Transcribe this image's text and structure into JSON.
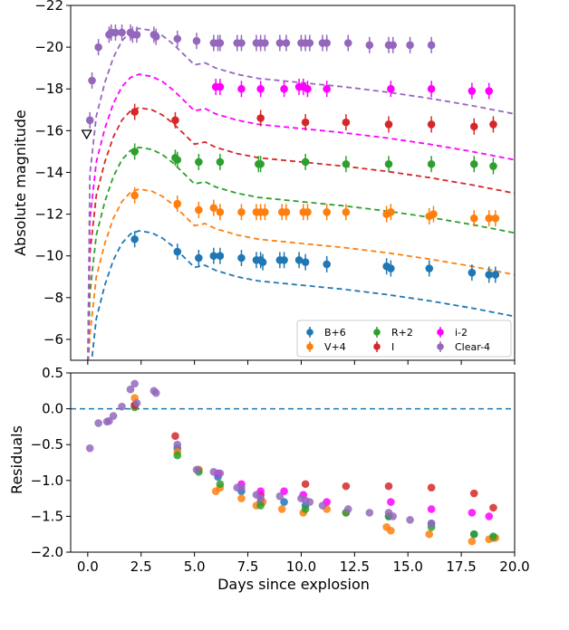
{
  "chart_data": {
    "type": "scatter",
    "xlabel": "Days since explosion",
    "xlim": [
      -0.8,
      20.0
    ],
    "x_ticks": [
      "0.0",
      "2.5",
      "5.0",
      "7.5",
      "10.0",
      "12.5",
      "15.0",
      "17.5",
      "20.0"
    ],
    "x_tick_values": [
      0,
      2.5,
      5,
      7.5,
      10,
      12.5,
      15,
      17.5,
      20
    ],
    "top": {
      "ylabel": "Absolute magnitude",
      "ylim": [
        -22,
        -5
      ],
      "inverted": true,
      "y_ticks": [
        "−22",
        "−20",
        "−18",
        "−16",
        "−14",
        "−12",
        "−10",
        "−8",
        "−6"
      ],
      "y_tick_values": [
        -22,
        -20,
        -18,
        -16,
        -14,
        -12,
        -10,
        -8,
        -6
      ],
      "upper_limit": {
        "x": -0.05,
        "y": -15.8,
        "marker": "down-triangle"
      },
      "model_shape": {
        "days": [
          0.1,
          0.4,
          0.8,
          1.2,
          1.6,
          2.0,
          2.4,
          3.0,
          3.5,
          4.0,
          4.5,
          5.0,
          5.5,
          6.0,
          7.0,
          8.0,
          10.0,
          12.0,
          14.0,
          16.0,
          18.0,
          20.0
        ],
        "offset": [
          7.0,
          4.2,
          2.6,
          1.4,
          0.6,
          0.15,
          0.0,
          0.1,
          0.35,
          0.75,
          1.25,
          1.75,
          1.65,
          1.9,
          2.2,
          2.4,
          2.6,
          2.8,
          3.05,
          3.35,
          3.7,
          4.1
        ]
      },
      "series": [
        {
          "name": "B+6",
          "color": "#1f77b4",
          "model_peak": -11.2,
          "points": [
            [
              2.2,
              -10.8
            ],
            [
              4.2,
              -10.2
            ],
            [
              5.2,
              -9.9
            ],
            [
              5.9,
              -10.0
            ],
            [
              6.2,
              -10.0
            ],
            [
              7.2,
              -9.9
            ],
            [
              7.9,
              -9.8
            ],
            [
              8.1,
              -9.8
            ],
            [
              8.2,
              -9.7
            ],
            [
              9.0,
              -9.8
            ],
            [
              9.2,
              -9.8
            ],
            [
              9.9,
              -9.8
            ],
            [
              10.2,
              -9.7
            ],
            [
              11.2,
              -9.6
            ],
            [
              14.0,
              -9.5
            ],
            [
              14.2,
              -9.4
            ],
            [
              16.0,
              -9.4
            ],
            [
              18.0,
              -9.2
            ],
            [
              18.8,
              -9.1
            ],
            [
              19.1,
              -9.1
            ]
          ]
        },
        {
          "name": "V+4",
          "color": "#ff7f0e",
          "model_peak": -13.2,
          "points": [
            [
              2.2,
              -12.9
            ],
            [
              4.2,
              -12.5
            ],
            [
              5.2,
              -12.2
            ],
            [
              5.9,
              -12.3
            ],
            [
              6.2,
              -12.1
            ],
            [
              7.2,
              -12.1
            ],
            [
              7.9,
              -12.1
            ],
            [
              8.1,
              -12.1
            ],
            [
              8.3,
              -12.1
            ],
            [
              9.1,
              -12.1
            ],
            [
              9.3,
              -12.1
            ],
            [
              10.1,
              -12.1
            ],
            [
              10.3,
              -12.1
            ],
            [
              11.2,
              -12.1
            ],
            [
              12.1,
              -12.1
            ],
            [
              14.0,
              -12.0
            ],
            [
              14.2,
              -12.1
            ],
            [
              16.0,
              -11.9
            ],
            [
              16.2,
              -12.0
            ],
            [
              18.1,
              -11.8
            ],
            [
              18.8,
              -11.8
            ],
            [
              19.1,
              -11.8
            ]
          ]
        },
        {
          "name": "R+2",
          "color": "#2ca02c",
          "model_peak": -15.2,
          "points": [
            [
              2.2,
              -15.0
            ],
            [
              4.1,
              -14.7
            ],
            [
              4.2,
              -14.6
            ],
            [
              5.2,
              -14.5
            ],
            [
              6.2,
              -14.5
            ],
            [
              8.0,
              -14.4
            ],
            [
              8.1,
              -14.4
            ],
            [
              10.2,
              -14.5
            ],
            [
              12.1,
              -14.4
            ],
            [
              14.1,
              -14.4
            ],
            [
              16.1,
              -14.4
            ],
            [
              18.1,
              -14.4
            ],
            [
              19.0,
              -14.3
            ]
          ]
        },
        {
          "name": "I",
          "color": "#d62728",
          "model_peak": -17.1,
          "points": [
            [
              2.2,
              -16.9
            ],
            [
              4.1,
              -16.5
            ],
            [
              8.1,
              -16.6
            ],
            [
              10.2,
              -16.4
            ],
            [
              12.1,
              -16.4
            ],
            [
              14.1,
              -16.3
            ],
            [
              16.1,
              -16.3
            ],
            [
              18.1,
              -16.2
            ],
            [
              19.0,
              -16.3
            ]
          ]
        },
        {
          "name": "i-2",
          "color": "#ff00ff",
          "model_peak": -18.7,
          "points": [
            [
              6.0,
              -18.1
            ],
            [
              6.2,
              -18.1
            ],
            [
              7.2,
              -18.0
            ],
            [
              8.1,
              -18.0
            ],
            [
              9.2,
              -18.0
            ],
            [
              9.9,
              -18.1
            ],
            [
              10.1,
              -18.1
            ],
            [
              10.3,
              -18.0
            ],
            [
              11.2,
              -18.0
            ],
            [
              14.2,
              -18.0
            ],
            [
              16.1,
              -18.0
            ],
            [
              18.0,
              -17.9
            ],
            [
              18.8,
              -17.9
            ]
          ]
        },
        {
          "name": "Clear-4",
          "color": "#9467bd",
          "model_peak": -20.9,
          "points": [
            [
              0.1,
              -16.5
            ],
            [
              0.2,
              -18.4
            ],
            [
              0.5,
              -20.0
            ],
            [
              1.0,
              -20.6
            ],
            [
              1.1,
              -20.7
            ],
            [
              1.3,
              -20.7
            ],
            [
              1.6,
              -20.7
            ],
            [
              2.0,
              -20.7
            ],
            [
              2.1,
              -20.6
            ],
            [
              2.3,
              -20.6
            ],
            [
              3.1,
              -20.6
            ],
            [
              3.2,
              -20.5
            ],
            [
              4.2,
              -20.4
            ],
            [
              5.1,
              -20.3
            ],
            [
              5.9,
              -20.2
            ],
            [
              6.1,
              -20.2
            ],
            [
              6.2,
              -20.2
            ],
            [
              7.0,
              -20.2
            ],
            [
              7.2,
              -20.2
            ],
            [
              7.9,
              -20.2
            ],
            [
              8.1,
              -20.2
            ],
            [
              8.3,
              -20.2
            ],
            [
              9.0,
              -20.2
            ],
            [
              9.3,
              -20.2
            ],
            [
              10.0,
              -20.2
            ],
            [
              10.2,
              -20.2
            ],
            [
              10.4,
              -20.2
            ],
            [
              11.0,
              -20.2
            ],
            [
              11.2,
              -20.2
            ],
            [
              12.2,
              -20.2
            ],
            [
              13.2,
              -20.1
            ],
            [
              14.1,
              -20.1
            ],
            [
              14.3,
              -20.1
            ],
            [
              15.1,
              -20.1
            ],
            [
              16.1,
              -20.1
            ]
          ]
        }
      ],
      "legend": {
        "location": "lower-right",
        "entries": [
          "B+6",
          "V+4",
          "R+2",
          "I",
          "i-2",
          "Clear-4"
        ]
      }
    },
    "bottom": {
      "ylabel": "Residuals",
      "ylim": [
        -2.0,
        0.5
      ],
      "y_ticks": [
        "0.5",
        "0.0",
        "−0.5",
        "−1.0",
        "−1.5",
        "−2.0"
      ],
      "y_tick_values": [
        0.5,
        0.0,
        -0.5,
        -1.0,
        -1.5,
        -2.0
      ],
      "zero_line_color": "#1f77b4",
      "series": [
        {
          "name": "B+6",
          "color": "#1f77b4",
          "points": [
            [
              2.2,
              0.05
            ],
            [
              4.2,
              -0.55
            ],
            [
              5.2,
              -0.85
            ],
            [
              6.1,
              -0.95
            ],
            [
              7.2,
              -1.15
            ],
            [
              8.1,
              -1.3
            ],
            [
              9.2,
              -1.3
            ],
            [
              10.2,
              -1.35
            ],
            [
              14.1,
              -1.5
            ],
            [
              16.1,
              -1.6
            ],
            [
              18.1,
              -1.75
            ],
            [
              19.0,
              -1.8
            ]
          ]
        },
        {
          "name": "V+4",
          "color": "#ff7f0e",
          "points": [
            [
              2.2,
              0.15
            ],
            [
              4.2,
              -0.6
            ],
            [
              5.2,
              -0.85
            ],
            [
              6.0,
              -1.15
            ],
            [
              6.2,
              -1.1
            ],
            [
              7.2,
              -1.25
            ],
            [
              7.9,
              -1.35
            ],
            [
              8.2,
              -1.3
            ],
            [
              9.1,
              -1.4
            ],
            [
              10.1,
              -1.45
            ],
            [
              11.2,
              -1.4
            ],
            [
              12.1,
              -1.45
            ],
            [
              14.0,
              -1.65
            ],
            [
              14.2,
              -1.7
            ],
            [
              16.0,
              -1.75
            ],
            [
              18.0,
              -1.85
            ],
            [
              18.8,
              -1.82
            ],
            [
              19.1,
              -1.8
            ]
          ]
        },
        {
          "name": "R+2",
          "color": "#2ca02c",
          "points": [
            [
              2.2,
              0.02
            ],
            [
              4.2,
              -0.65
            ],
            [
              5.2,
              -0.88
            ],
            [
              6.2,
              -1.05
            ],
            [
              8.1,
              -1.35
            ],
            [
              10.2,
              -1.4
            ],
            [
              12.1,
              -1.45
            ],
            [
              14.1,
              -1.5
            ],
            [
              16.1,
              -1.65
            ],
            [
              18.1,
              -1.75
            ],
            [
              19.0,
              -1.78
            ]
          ]
        },
        {
          "name": "I",
          "color": "#d62728",
          "points": [
            [
              2.2,
              0.05
            ],
            [
              4.1,
              -0.38
            ],
            [
              8.1,
              -1.2
            ],
            [
              10.2,
              -1.05
            ],
            [
              12.1,
              -1.08
            ],
            [
              14.1,
              -1.08
            ],
            [
              16.1,
              -1.1
            ],
            [
              18.1,
              -1.18
            ],
            [
              19.0,
              -1.38
            ]
          ]
        },
        {
          "name": "i-2",
          "color": "#ff00ff",
          "points": [
            [
              6.1,
              -0.9
            ],
            [
              7.2,
              -1.05
            ],
            [
              8.1,
              -1.15
            ],
            [
              9.2,
              -1.15
            ],
            [
              10.1,
              -1.2
            ],
            [
              11.2,
              -1.3
            ],
            [
              14.2,
              -1.3
            ],
            [
              16.1,
              -1.4
            ],
            [
              18.0,
              -1.45
            ],
            [
              18.8,
              -1.5
            ]
          ]
        },
        {
          "name": "Clear-4",
          "color": "#9467bd",
          "points": [
            [
              0.1,
              -0.55
            ],
            [
              0.5,
              -0.2
            ],
            [
              0.9,
              -0.18
            ],
            [
              1.0,
              -0.17
            ],
            [
              1.2,
              -0.1
            ],
            [
              1.6,
              0.03
            ],
            [
              2.0,
              0.27
            ],
            [
              2.2,
              0.35
            ],
            [
              2.3,
              0.08
            ],
            [
              3.1,
              0.25
            ],
            [
              3.2,
              0.22
            ],
            [
              4.2,
              -0.5
            ],
            [
              5.1,
              -0.85
            ],
            [
              5.9,
              -0.88
            ],
            [
              6.2,
              -0.9
            ],
            [
              7.0,
              -1.1
            ],
            [
              7.2,
              -1.1
            ],
            [
              7.9,
              -1.2
            ],
            [
              8.1,
              -1.25
            ],
            [
              9.0,
              -1.22
            ],
            [
              10.0,
              -1.25
            ],
            [
              10.2,
              -1.28
            ],
            [
              10.4,
              -1.3
            ],
            [
              11.0,
              -1.35
            ],
            [
              12.2,
              -1.4
            ],
            [
              13.2,
              -1.45
            ],
            [
              14.1,
              -1.45
            ],
            [
              14.3,
              -1.5
            ],
            [
              15.1,
              -1.55
            ],
            [
              16.1,
              -1.6
            ]
          ]
        }
      ]
    }
  }
}
